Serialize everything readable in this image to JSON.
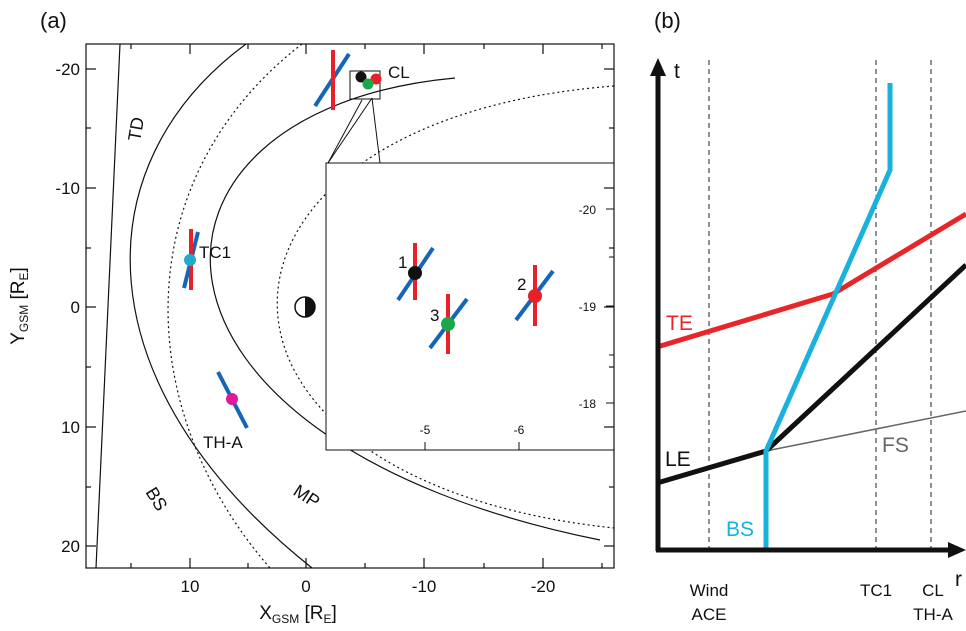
{
  "panel_a": {
    "label": "(a)",
    "x_axis": {
      "main": "X",
      "sub": "GSM",
      "unit_open": " [R",
      "unit_sub": "E",
      "unit_close": "]"
    },
    "y_axis": {
      "main": "Y",
      "sub": "GSM",
      "unit_open": " [R",
      "unit_sub": "E",
      "unit_close": "]"
    },
    "x_ticks": [
      "10",
      "0",
      "-10",
      "-20"
    ],
    "y_ticks": [
      "-20",
      "-10",
      "0",
      "10",
      "20"
    ],
    "regions": {
      "td": "TD",
      "bs": "BS",
      "mp": "MP"
    },
    "spacecraft": {
      "tc1": "TC1",
      "tha": "TH-A",
      "cl": "CL"
    },
    "inset": {
      "x_ticks": [
        "-5",
        "-6"
      ],
      "y_ticks": [
        "-20",
        "-19",
        "-18"
      ],
      "points": [
        "1",
        "2",
        "3"
      ]
    },
    "colors": {
      "normal": "#1565b8",
      "tangent": "#e8202a",
      "tc1": "#22aacc",
      "tha": "#e0199a",
      "cl1": "#111111",
      "cl2": "#e8202a",
      "cl3": "#1aa84a"
    }
  },
  "panel_b": {
    "label": "(b)",
    "y_axis_label": "t",
    "x_axis_label": "r",
    "lines": {
      "te": "TE",
      "le": "LE",
      "fs": "FS",
      "bs": "BS"
    },
    "x_markers": [
      {
        "line1": "Wind",
        "line2": "ACE"
      },
      {
        "line1": "TC1",
        "line2": ""
      },
      {
        "line1": "CL",
        "line2": "TH-A"
      }
    ],
    "colors": {
      "te": "#e8262a",
      "le": "#111111",
      "fs": "#666666",
      "bs": "#1ab2dd"
    }
  }
}
